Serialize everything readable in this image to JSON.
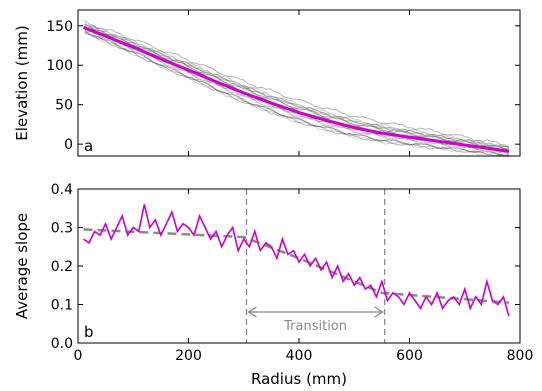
{
  "chart_data": [
    {
      "type": "line",
      "panel_label": "a",
      "xlabel": "",
      "ylabel": "Elevation (mm)",
      "xlim": [
        0,
        800
      ],
      "ylim": [
        -15,
        170
      ],
      "xticks": [
        0,
        200,
        400,
        600,
        800
      ],
      "yticks": [
        0,
        50,
        100,
        150
      ],
      "ytick_labels": [
        "0",
        "50",
        "100",
        "150"
      ],
      "grid": false,
      "colors": {
        "mean": "#cc00cc",
        "profiles_dark": "#5a5a5a",
        "profiles_light": "#c8c8c8"
      },
      "mean_profile": {
        "x": [
          10,
          50,
          100,
          150,
          200,
          250,
          300,
          350,
          400,
          450,
          500,
          550,
          600,
          650,
          700,
          750,
          780
        ],
        "y": [
          148,
          137,
          123,
          108,
          94,
          79,
          65,
          52,
          40,
          30,
          21,
          14,
          9,
          4,
          -1,
          -6,
          -9
        ]
      },
      "profiles_note_count": 18
    },
    {
      "type": "line",
      "panel_label": "b",
      "xlabel": "Radius (mm)",
      "ylabel": "Average slope",
      "xlim": [
        0,
        800
      ],
      "ylim": [
        0.0,
        0.4
      ],
      "xticks": [
        0,
        200,
        400,
        600,
        800
      ],
      "xtick_labels": [
        "0",
        "200",
        "400",
        "600",
        "800"
      ],
      "yticks": [
        0.0,
        0.1,
        0.2,
        0.3,
        0.4
      ],
      "ytick_labels": [
        "0.0",
        "0.1",
        "0.2",
        "0.3",
        "0.4"
      ],
      "grid": false,
      "colors": {
        "slope": "#cc00cc",
        "fit": "#8a8a8a",
        "vline": "#8a8a8a",
        "annotation": "#8a8a8a"
      },
      "slope_series": {
        "x": [
          10,
          20,
          30,
          40,
          50,
          60,
          70,
          80,
          90,
          100,
          110,
          120,
          130,
          140,
          150,
          160,
          170,
          180,
          190,
          200,
          210,
          220,
          230,
          240,
          250,
          260,
          270,
          280,
          290,
          300,
          310,
          320,
          330,
          340,
          350,
          360,
          370,
          380,
          390,
          400,
          410,
          420,
          430,
          440,
          450,
          460,
          470,
          480,
          490,
          500,
          510,
          520,
          530,
          540,
          550,
          560,
          570,
          580,
          590,
          600,
          610,
          620,
          630,
          640,
          650,
          660,
          670,
          680,
          690,
          700,
          710,
          720,
          730,
          740,
          750,
          760,
          770,
          780
        ],
        "y": [
          0.27,
          0.26,
          0.29,
          0.28,
          0.31,
          0.27,
          0.3,
          0.33,
          0.28,
          0.3,
          0.29,
          0.36,
          0.3,
          0.32,
          0.28,
          0.31,
          0.34,
          0.29,
          0.31,
          0.3,
          0.28,
          0.33,
          0.3,
          0.27,
          0.29,
          0.25,
          0.28,
          0.3,
          0.24,
          0.27,
          0.25,
          0.29,
          0.24,
          0.26,
          0.25,
          0.22,
          0.27,
          0.23,
          0.24,
          0.21,
          0.23,
          0.2,
          0.22,
          0.19,
          0.21,
          0.17,
          0.2,
          0.16,
          0.18,
          0.15,
          0.17,
          0.14,
          0.15,
          0.12,
          0.16,
          0.11,
          0.13,
          0.12,
          0.1,
          0.13,
          0.11,
          0.09,
          0.12,
          0.1,
          0.13,
          0.09,
          0.11,
          0.12,
          0.1,
          0.14,
          0.09,
          0.12,
          0.1,
          0.16,
          0.11,
          0.1,
          0.12,
          0.07
        ]
      },
      "fit_series": {
        "x": [
          10,
          300,
          400,
          450,
          550,
          780
        ],
        "y": [
          0.295,
          0.275,
          0.22,
          0.19,
          0.13,
          0.105
        ]
      },
      "transition_bounds": [
        305,
        555
      ],
      "annotation_label": "Transition"
    }
  ]
}
